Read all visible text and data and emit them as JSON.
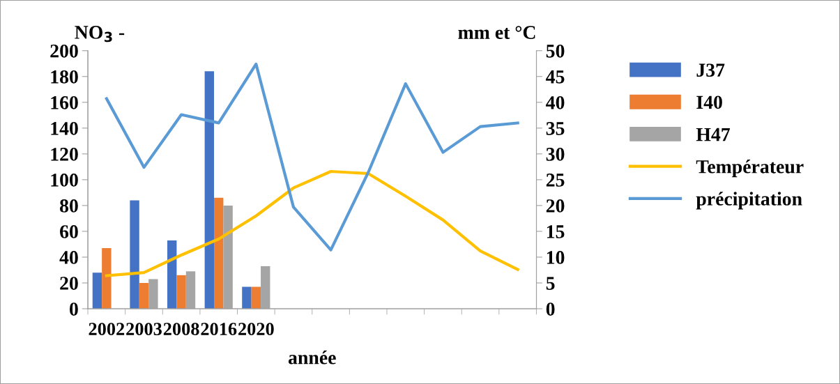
{
  "chart_data": {
    "type": "bar",
    "xlabel": "année",
    "ylabel": "NO$_{3}$ -",
    "y2label": "mm et °C",
    "categories": [
      "2002",
      "2003",
      "2008",
      "2016",
      "2020",
      null,
      null,
      null,
      null,
      null,
      null,
      null
    ],
    "series": [
      {
        "name": "J37",
        "color": "#4472c4",
        "values": [
          28,
          84,
          53,
          184,
          17,
          null,
          null,
          null,
          null,
          null,
          null,
          null
        ]
      },
      {
        "name": "I40",
        "color": "#ed7d31",
        "values": [
          47,
          20,
          26,
          86,
          17,
          null,
          null,
          null,
          null,
          null,
          null,
          null
        ]
      },
      {
        "name": "H47",
        "color": "#a5a5a5",
        "values": [
          null,
          23,
          29,
          80,
          33,
          null,
          null,
          null,
          null,
          null,
          null,
          null
        ]
      },
      {
        "name": "Températeur",
        "color": "#ffc000",
        "type": "line",
        "axis": "y2",
        "values": [
          6.4,
          7.0,
          10.4,
          13.5,
          18.0,
          23.4,
          26.6,
          26.2,
          21.8,
          17.2,
          11.2,
          7.6
        ]
      },
      {
        "name": "précipitation",
        "color": "#5b9bd5",
        "type": "line",
        "axis": "y2",
        "values": [
          40.7,
          27.4,
          37.6,
          36.0,
          47.4,
          19.7,
          11.4,
          26.4,
          43.6,
          30.3,
          35.3,
          36.0
        ]
      }
    ],
    "ylim": [
      0,
      200
    ],
    "yticks": [
      0,
      20,
      40,
      60,
      80,
      100,
      120,
      140,
      160,
      180,
      200
    ],
    "y2lim": [
      0,
      50
    ],
    "y2ticks": [
      0,
      5,
      10,
      15,
      20,
      25,
      30,
      35,
      40,
      45,
      50
    ],
    "grid": false,
    "legend": "right",
    "line_style": "solid",
    "marker": "none"
  }
}
